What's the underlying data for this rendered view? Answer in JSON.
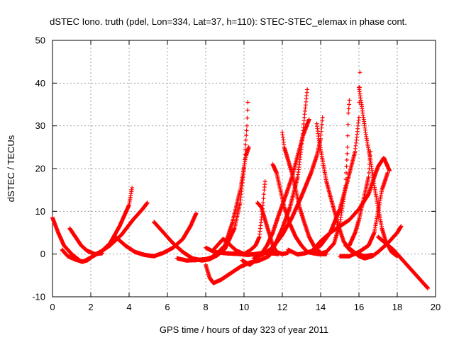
{
  "chart_data": {
    "type": "scatter",
    "title": "dSTEC Iono. truth (pdel, Lon=334, Lat=37, h=110): STEC-STEC_elemax in phase cont.",
    "xlabel": "GPS time / hours of day 323 of year 2011",
    "ylabel": "dSTEC  / TECUs",
    "xlim": [
      0,
      20
    ],
    "ylim": [
      -10,
      50
    ],
    "xticks": [
      "0",
      "2",
      "4",
      "6",
      "8",
      "10",
      "12",
      "14",
      "16",
      "18",
      "20"
    ],
    "yticks": [
      "-10",
      "0",
      "10",
      "20",
      "30",
      "40",
      "50"
    ],
    "grid": true,
    "marker": "+",
    "color": "#ff0000",
    "series": [
      {
        "points": [
          [
            0.0,
            8.5
          ],
          [
            0.3,
            5.0
          ],
          [
            0.6,
            2.0
          ],
          [
            1.0,
            0.0
          ],
          [
            1.5,
            -1.8
          ],
          [
            1.8,
            -1.5
          ],
          [
            2.2,
            -0.2
          ],
          [
            2.6,
            0.8
          ],
          [
            3.0,
            2.5
          ],
          [
            3.5,
            6.5
          ],
          [
            4.0,
            11.5
          ],
          [
            4.15,
            15.5
          ]
        ]
      },
      {
        "points": [
          [
            0.5,
            1.0
          ],
          [
            0.8,
            -0.5
          ],
          [
            1.2,
            -1.3
          ],
          [
            1.6,
            -1.8
          ],
          [
            2.0,
            -0.8
          ],
          [
            2.4,
            0.2
          ],
          [
            3.0,
            2.0
          ],
          [
            3.6,
            4.5
          ],
          [
            4.2,
            8.0
          ],
          [
            4.7,
            10.5
          ],
          [
            4.95,
            12.0
          ]
        ]
      },
      {
        "points": [
          [
            0.9,
            6.0
          ],
          [
            1.2,
            4.0
          ],
          [
            1.5,
            2.0
          ],
          [
            1.8,
            0.8
          ],
          [
            2.2,
            0.0
          ],
          [
            2.6,
            0.2
          ]
        ]
      },
      {
        "points": [
          [
            3.3,
            4.0
          ],
          [
            3.8,
            2.0
          ],
          [
            4.3,
            0.5
          ],
          [
            4.8,
            -0.2
          ],
          [
            5.3,
            -0.5
          ],
          [
            5.8,
            0.3
          ],
          [
            6.3,
            1.5
          ],
          [
            6.8,
            3.5
          ],
          [
            7.2,
            6.5
          ],
          [
            7.5,
            9.5
          ]
        ]
      },
      {
        "points": [
          [
            5.3,
            7.5
          ],
          [
            5.8,
            5.0
          ],
          [
            6.3,
            2.5
          ],
          [
            6.8,
            0.5
          ],
          [
            7.3,
            -1.0
          ],
          [
            7.8,
            -1.5
          ],
          [
            8.2,
            -1.2
          ],
          [
            8.6,
            -0.3
          ],
          [
            9.0,
            1.2
          ],
          [
            9.5,
            6.0
          ],
          [
            9.8,
            12.0
          ],
          [
            10.0,
            20.0
          ],
          [
            10.15,
            30.0
          ],
          [
            10.2,
            35.5
          ]
        ]
      },
      {
        "points": [
          [
            6.5,
            -1.0
          ],
          [
            7.0,
            -1.5
          ],
          [
            7.5,
            -1.4
          ],
          [
            8.0,
            -1.2
          ],
          [
            8.3,
            -0.8
          ],
          [
            8.6,
            0.2
          ],
          [
            9.0,
            2.0
          ],
          [
            9.4,
            7.5
          ],
          [
            9.8,
            15.0
          ],
          [
            10.1,
            23.0
          ],
          [
            10.25,
            25.0
          ]
        ]
      },
      {
        "points": [
          [
            8.0,
            -2.5
          ],
          [
            8.2,
            -5.5
          ],
          [
            8.4,
            -6.8
          ],
          [
            8.8,
            -6.0
          ],
          [
            9.3,
            -4.5
          ],
          [
            9.8,
            -3.0
          ],
          [
            10.3,
            -2.0
          ],
          [
            10.8,
            -1.5
          ],
          [
            11.3,
            -0.5
          ],
          [
            11.6,
            2.0
          ],
          [
            12.0,
            6.0
          ],
          [
            12.4,
            11.0
          ],
          [
            12.8,
            18.0
          ],
          [
            13.0,
            25.0
          ],
          [
            13.15,
            32.0
          ],
          [
            13.3,
            38.5
          ]
        ]
      },
      {
        "points": [
          [
            8.0,
            1.5
          ],
          [
            8.3,
            0.8
          ],
          [
            8.6,
            0.4
          ],
          [
            9.0,
            0.2
          ],
          [
            9.4,
            0.1
          ],
          [
            9.8,
            0.0
          ],
          [
            10.2,
            -0.2
          ],
          [
            10.6,
            0.0
          ],
          [
            11.0,
            0.3
          ],
          [
            11.4,
            0.2
          ],
          [
            11.8,
            0.0
          ]
        ]
      },
      {
        "points": [
          [
            8.4,
            1.0
          ],
          [
            8.7,
            2.5
          ],
          [
            8.9,
            3.5
          ],
          [
            9.1,
            3.0
          ],
          [
            9.3,
            2.0
          ],
          [
            9.6,
            0.8
          ],
          [
            10.0,
            0.0
          ],
          [
            10.3,
            0.8
          ],
          [
            10.6,
            2.0
          ],
          [
            10.8,
            4.0
          ],
          [
            10.9,
            8.0
          ],
          [
            11.0,
            12.0
          ],
          [
            11.05,
            15.0
          ],
          [
            11.1,
            17.0
          ]
        ]
      },
      {
        "points": [
          [
            9.9,
            -1.5
          ],
          [
            10.3,
            -2.5
          ],
          [
            10.6,
            -1.5
          ],
          [
            10.9,
            0.0
          ],
          [
            11.2,
            2.0
          ],
          [
            11.5,
            5.0
          ],
          [
            11.8,
            9.0
          ],
          [
            12.2,
            14.0
          ],
          [
            12.5,
            18.0
          ],
          [
            12.8,
            23.0
          ],
          [
            13.1,
            28.0
          ],
          [
            13.4,
            31.5
          ]
        ]
      },
      {
        "points": [
          [
            10.5,
            -1.0
          ],
          [
            11.0,
            0.0
          ],
          [
            11.5,
            1.5
          ],
          [
            12.0,
            4.5
          ],
          [
            12.5,
            8.5
          ],
          [
            13.0,
            13.5
          ],
          [
            13.5,
            19.0
          ],
          [
            13.8,
            23.0
          ],
          [
            14.0,
            27.0
          ],
          [
            14.1,
            32.0
          ]
        ]
      },
      {
        "points": [
          [
            10.7,
            12.0
          ],
          [
            10.9,
            11.0
          ],
          [
            11.1,
            8.0
          ],
          [
            11.3,
            5.0
          ],
          [
            11.5,
            2.0
          ],
          [
            11.7,
            0.5
          ],
          [
            12.0,
            0.0
          ],
          [
            12.3,
            0.3
          ]
        ]
      },
      {
        "points": [
          [
            11.5,
            21.0
          ],
          [
            11.7,
            19.0
          ],
          [
            11.9,
            15.0
          ],
          [
            12.1,
            11.0
          ],
          [
            12.4,
            7.0
          ],
          [
            12.7,
            4.0
          ],
          [
            13.0,
            2.0
          ],
          [
            13.3,
            0.5
          ],
          [
            13.6,
            0.2
          ],
          [
            13.9,
            0.0
          ],
          [
            14.3,
            0.0
          ]
        ]
      },
      {
        "points": [
          [
            12.0,
            28.5
          ],
          [
            12.1,
            25.0
          ],
          [
            12.3,
            22.0
          ],
          [
            12.5,
            19.0
          ],
          [
            12.7,
            15.0
          ],
          [
            12.9,
            11.0
          ],
          [
            13.1,
            8.0
          ],
          [
            13.4,
            4.0
          ],
          [
            13.7,
            1.5
          ],
          [
            14.0,
            0.3
          ]
        ]
      },
      {
        "points": [
          [
            12.3,
            1.0
          ],
          [
            12.8,
            -0.1
          ],
          [
            13.2,
            0.2
          ],
          [
            13.6,
            0.8
          ],
          [
            14.0,
            2.0
          ],
          [
            14.5,
            5.0
          ],
          [
            15.0,
            10.5
          ],
          [
            15.4,
            17.0
          ],
          [
            15.8,
            24.0
          ],
          [
            16.0,
            32.0
          ],
          [
            16.05,
            42.5
          ]
        ]
      },
      {
        "points": [
          [
            13.4,
            0.5
          ],
          [
            13.9,
            0.0
          ],
          [
            14.3,
            0.5
          ],
          [
            14.7,
            2.5
          ],
          [
            15.0,
            7.0
          ],
          [
            15.3,
            16.0
          ],
          [
            15.4,
            25.0
          ],
          [
            15.45,
            33.0
          ],
          [
            15.5,
            36.0
          ]
        ]
      },
      {
        "points": [
          [
            13.8,
            30.5
          ],
          [
            13.9,
            27.0
          ],
          [
            14.1,
            22.0
          ],
          [
            14.3,
            17.0
          ],
          [
            14.6,
            12.0
          ],
          [
            14.9,
            7.0
          ],
          [
            15.2,
            3.0
          ],
          [
            15.5,
            1.0
          ],
          [
            15.9,
            0.0
          ],
          [
            16.3,
            -0.5
          ],
          [
            16.7,
            -0.2
          ]
        ]
      },
      {
        "points": [
          [
            13.6,
            1.0
          ],
          [
            14.0,
            3.0
          ],
          [
            14.5,
            5.0
          ],
          [
            15.0,
            6.5
          ],
          [
            15.5,
            8.0
          ],
          [
            16.0,
            10.5
          ],
          [
            16.5,
            14.0
          ],
          [
            16.8,
            18.0
          ],
          [
            17.0,
            20.5
          ],
          [
            17.3,
            22.5
          ],
          [
            17.6,
            19.5
          ]
        ]
      },
      {
        "points": [
          [
            15.0,
            -0.5
          ],
          [
            15.5,
            -0.5
          ],
          [
            16.0,
            0.5
          ],
          [
            16.5,
            2.0
          ],
          [
            16.8,
            5.0
          ],
          [
            17.0,
            10.0
          ],
          [
            17.2,
            15.0
          ],
          [
            17.5,
            19.0
          ]
        ]
      },
      {
        "points": [
          [
            16.0,
            39.0
          ],
          [
            16.2,
            33.0
          ],
          [
            16.4,
            27.0
          ],
          [
            16.6,
            22.0
          ],
          [
            16.8,
            16.0
          ],
          [
            17.0,
            11.0
          ],
          [
            17.2,
            6.0
          ],
          [
            17.4,
            3.0
          ],
          [
            17.7,
            0.5
          ],
          [
            18.0,
            -0.5
          ]
        ]
      },
      {
        "points": [
          [
            15.3,
            2.0
          ],
          [
            15.6,
            1.0
          ],
          [
            16.0,
            -0.5
          ],
          [
            16.3,
            -1.0
          ],
          [
            16.7,
            -0.5
          ],
          [
            17.0,
            0.5
          ],
          [
            17.5,
            2.5
          ],
          [
            18.0,
            5.0
          ],
          [
            18.2,
            6.5
          ]
        ]
      },
      {
        "points": [
          [
            17.0,
            4.0
          ],
          [
            17.4,
            2.5
          ],
          [
            17.8,
            1.0
          ],
          [
            18.2,
            -1.0
          ],
          [
            18.6,
            -3.0
          ],
          [
            19.0,
            -5.0
          ],
          [
            19.4,
            -7.0
          ],
          [
            19.6,
            -8.0
          ]
        ]
      },
      {
        "points": [
          [
            16.6,
            24.0
          ],
          [
            16.5,
            18.0
          ],
          [
            16.3,
            14.0
          ],
          [
            16.0,
            8.0
          ],
          [
            15.8,
            5.0
          ],
          [
            15.5,
            2.0
          ]
        ]
      }
    ]
  }
}
